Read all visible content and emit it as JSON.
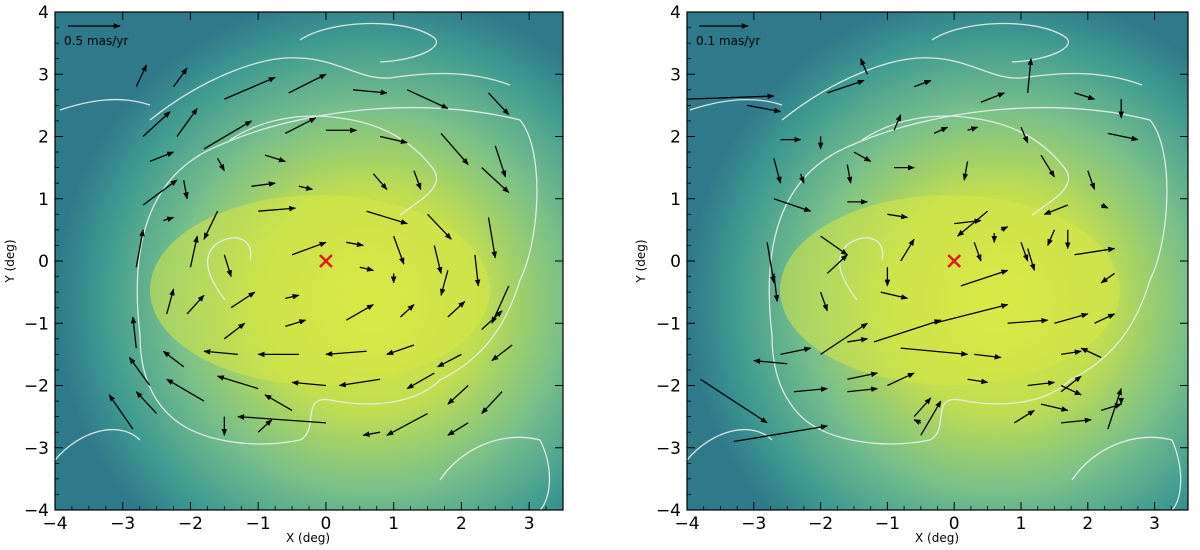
{
  "chart_data": [
    {
      "type": "vector-field",
      "xlabel": "X (deg)",
      "ylabel": "Y (deg)",
      "xlim": [
        -4,
        3.5
      ],
      "ylim": [
        -4,
        4
      ],
      "xticks": [
        -4,
        -3,
        -2,
        -1,
        0,
        1,
        2,
        3
      ],
      "yticks": [
        -4,
        -3,
        -2,
        -1,
        0,
        1,
        2,
        3,
        4
      ],
      "scale_label": "0.5 mas/yr",
      "center_marker": {
        "x": 0,
        "y": 0,
        "symbol": "x",
        "color": "#e41a1c"
      },
      "colors": {
        "background_low": "#2f7f8e",
        "background_mid": "#5fb894",
        "background_high": "#d8e84a",
        "contour": "#e8f2ee",
        "arrow": "#000000"
      },
      "vectors": [
        {
          "x": -2.8,
          "y": 2.8,
          "dx": 0.15,
          "dy": 0.35
        },
        {
          "x": -2.25,
          "y": 2.8,
          "dx": 0.2,
          "dy": 0.3
        },
        {
          "x": -1.5,
          "y": 2.6,
          "dx": 0.75,
          "dy": 0.35
        },
        {
          "x": -0.55,
          "y": 2.7,
          "dx": 0.55,
          "dy": 0.3
        },
        {
          "x": 0.4,
          "y": 2.75,
          "dx": 0.5,
          "dy": -0.05
        },
        {
          "x": 1.2,
          "y": 2.75,
          "dx": 0.6,
          "dy": -0.3
        },
        {
          "x": 2.4,
          "y": 2.7,
          "dx": 0.3,
          "dy": -0.35
        },
        {
          "x": -2.7,
          "y": 2.0,
          "dx": 0.4,
          "dy": 0.4
        },
        {
          "x": -2.2,
          "y": 2.0,
          "dx": 0.3,
          "dy": 0.45
        },
        {
          "x": -1.8,
          "y": 1.8,
          "dx": 0.7,
          "dy": 0.45
        },
        {
          "x": -0.6,
          "y": 2.05,
          "dx": 0.45,
          "dy": 0.25
        },
        {
          "x": 0.0,
          "y": 2.1,
          "dx": 0.45,
          "dy": 0.0
        },
        {
          "x": 0.8,
          "y": 2.0,
          "dx": 0.4,
          "dy": -0.1
        },
        {
          "x": 1.7,
          "y": 2.05,
          "dx": 0.4,
          "dy": -0.5
        },
        {
          "x": 2.5,
          "y": 1.85,
          "dx": 0.15,
          "dy": -0.5
        },
        {
          "x": -2.6,
          "y": 1.6,
          "dx": 0.35,
          "dy": 0.15
        },
        {
          "x": -1.6,
          "y": 1.65,
          "dx": 0.1,
          "dy": -0.2
        },
        {
          "x": -0.9,
          "y": 1.7,
          "dx": 0.3,
          "dy": -0.1
        },
        {
          "x": 0.7,
          "y": 1.4,
          "dx": 0.2,
          "dy": -0.25
        },
        {
          "x": 1.3,
          "y": 1.45,
          "dx": 0.1,
          "dy": -0.3
        },
        {
          "x": -2.7,
          "y": 0.9,
          "dx": 0.5,
          "dy": 0.4
        },
        {
          "x": -2.1,
          "y": 1.3,
          "dx": 0.05,
          "dy": -0.3
        },
        {
          "x": -1.1,
          "y": 1.2,
          "dx": 0.35,
          "dy": 0.05
        },
        {
          "x": -0.4,
          "y": 1.2,
          "dx": 0.2,
          "dy": -0.05
        },
        {
          "x": 2.3,
          "y": 1.5,
          "dx": 0.4,
          "dy": -0.4
        },
        {
          "x": -2.4,
          "y": 0.65,
          "dx": 0.15,
          "dy": 0.05
        },
        {
          "x": -1.6,
          "y": 0.8,
          "dx": -0.2,
          "dy": -0.45
        },
        {
          "x": -1.0,
          "y": 0.8,
          "dx": 0.55,
          "dy": 0.05
        },
        {
          "x": 0.6,
          "y": 0.8,
          "dx": 0.6,
          "dy": -0.2
        },
        {
          "x": 1.5,
          "y": 0.75,
          "dx": 0.35,
          "dy": -0.4
        },
        {
          "x": 2.4,
          "y": 0.7,
          "dx": 0.1,
          "dy": -0.65
        },
        {
          "x": -2.8,
          "y": -0.1,
          "dx": 0.1,
          "dy": 0.6
        },
        {
          "x": -2.0,
          "y": -0.1,
          "dx": 0.1,
          "dy": 0.5
        },
        {
          "x": -1.5,
          "y": 0.1,
          "dx": 0.1,
          "dy": -0.35
        },
        {
          "x": -0.5,
          "y": 0.1,
          "dx": 0.5,
          "dy": 0.2
        },
        {
          "x": 0.3,
          "y": 0.3,
          "dx": 0.25,
          "dy": -0.05
        },
        {
          "x": 1.0,
          "y": 0.4,
          "dx": 0.15,
          "dy": -0.45
        },
        {
          "x": 1.6,
          "y": 0.25,
          "dx": 0.1,
          "dy": -0.45
        },
        {
          "x": 2.2,
          "y": 0.1,
          "dx": 0.05,
          "dy": -0.5
        },
        {
          "x": -2.35,
          "y": -0.85,
          "dx": 0.1,
          "dy": 0.4
        },
        {
          "x": -1.4,
          "y": -0.75,
          "dx": 0.35,
          "dy": 0.25
        },
        {
          "x": -0.6,
          "y": -0.6,
          "dx": 0.2,
          "dy": 0.05
        },
        {
          "x": 0.5,
          "y": -0.1,
          "dx": 0.2,
          "dy": -0.05
        },
        {
          "x": 1.0,
          "y": -0.2,
          "dx": 0.0,
          "dy": -0.15
        },
        {
          "x": 1.8,
          "y": -0.15,
          "dx": -0.1,
          "dy": -0.4
        },
        {
          "x": 2.7,
          "y": -0.4,
          "dx": -0.25,
          "dy": -0.6
        },
        {
          "x": -2.8,
          "y": -1.4,
          "dx": -0.05,
          "dy": 0.5
        },
        {
          "x": -2.05,
          "y": -0.85,
          "dx": 0.25,
          "dy": 0.3
        },
        {
          "x": -1.5,
          "y": -1.25,
          "dx": 0.3,
          "dy": 0.25
        },
        {
          "x": -0.6,
          "y": -1.05,
          "dx": 0.3,
          "dy": 0.1
        },
        {
          "x": 0.3,
          "y": -0.95,
          "dx": 0.4,
          "dy": 0.25
        },
        {
          "x": 1.1,
          "y": -0.9,
          "dx": 0.2,
          "dy": 0.2
        },
        {
          "x": 1.8,
          "y": -0.9,
          "dx": 0.25,
          "dy": 0.25
        },
        {
          "x": 2.3,
          "y": -1.1,
          "dx": 0.3,
          "dy": 0.3
        },
        {
          "x": -2.6,
          "y": -2.0,
          "dx": -0.3,
          "dy": 0.45
        },
        {
          "x": -2.1,
          "y": -1.7,
          "dx": -0.3,
          "dy": 0.25
        },
        {
          "x": -1.3,
          "y": -1.5,
          "dx": -0.5,
          "dy": 0.05
        },
        {
          "x": -0.4,
          "y": -1.5,
          "dx": -0.6,
          "dy": 0.0
        },
        {
          "x": 0.6,
          "y": -1.45,
          "dx": -0.6,
          "dy": -0.05
        },
        {
          "x": 1.3,
          "y": -1.35,
          "dx": -0.4,
          "dy": -0.15
        },
        {
          "x": 2.0,
          "y": -1.5,
          "dx": -0.35,
          "dy": -0.2
        },
        {
          "x": 2.75,
          "y": -1.35,
          "dx": -0.3,
          "dy": -0.25
        },
        {
          "x": -2.85,
          "y": -2.7,
          "dx": -0.35,
          "dy": 0.55
        },
        {
          "x": -2.5,
          "y": -2.45,
          "dx": -0.3,
          "dy": 0.35
        },
        {
          "x": -1.8,
          "y": -2.25,
          "dx": -0.55,
          "dy": 0.35
        },
        {
          "x": -1.0,
          "y": -2.05,
          "dx": -0.6,
          "dy": 0.2
        },
        {
          "x": 0.0,
          "y": -2.0,
          "dx": -0.5,
          "dy": 0.05
        },
        {
          "x": 0.8,
          "y": -1.9,
          "dx": -0.6,
          "dy": -0.1
        },
        {
          "x": 1.6,
          "y": -1.8,
          "dx": -0.4,
          "dy": -0.25
        },
        {
          "x": 2.1,
          "y": -2.0,
          "dx": -0.3,
          "dy": -0.3
        },
        {
          "x": 2.6,
          "y": -2.1,
          "dx": -0.3,
          "dy": -0.35
        },
        {
          "x": -1.5,
          "y": -2.5,
          "dx": 0.0,
          "dy": -0.3
        },
        {
          "x": -1.0,
          "y": -2.75,
          "dx": 0.2,
          "dy": 0.2
        },
        {
          "x": 0.0,
          "y": -2.6,
          "dx": -1.3,
          "dy": 0.1
        },
        {
          "x": -0.5,
          "y": -2.4,
          "dx": -0.4,
          "dy": 0.25
        },
        {
          "x": 0.8,
          "y": -2.75,
          "dx": -0.25,
          "dy": -0.05
        },
        {
          "x": 1.5,
          "y": -2.45,
          "dx": -0.6,
          "dy": -0.35
        },
        {
          "x": 2.1,
          "y": -2.6,
          "dx": -0.3,
          "dy": -0.2
        }
      ]
    },
    {
      "type": "vector-field",
      "xlabel": "X (deg)",
      "ylabel": "Y (deg)",
      "xlim": [
        -4,
        3.5
      ],
      "ylim": [
        -4,
        4
      ],
      "xticks": [
        -4,
        -3,
        -2,
        -1,
        0,
        1,
        2,
        3
      ],
      "yticks": [
        -4,
        -3,
        -2,
        -1,
        0,
        1,
        2,
        3,
        4
      ],
      "scale_label": "0.1 mas/yr",
      "center_marker": {
        "x": 0,
        "y": 0,
        "symbol": "x",
        "color": "#e41a1c"
      },
      "colors": {
        "background_low": "#2f7f8e",
        "background_mid": "#5fb894",
        "background_high": "#d8e84a",
        "contour": "#e8f2ee",
        "arrow": "#000000"
      },
      "vectors": [
        {
          "x": -4.0,
          "y": 2.6,
          "dx": 1.3,
          "dy": 0.05
        },
        {
          "x": -3.1,
          "y": 2.5,
          "dx": 0.5,
          "dy": -0.1
        },
        {
          "x": -1.9,
          "y": 2.7,
          "dx": 0.55,
          "dy": 0.2
        },
        {
          "x": -1.3,
          "y": 3.0,
          "dx": -0.1,
          "dy": 0.25
        },
        {
          "x": -0.6,
          "y": 2.8,
          "dx": 0.25,
          "dy": 0.1
        },
        {
          "x": 0.4,
          "y": 2.55,
          "dx": 0.35,
          "dy": 0.15
        },
        {
          "x": 1.1,
          "y": 2.7,
          "dx": 0.05,
          "dy": 0.55
        },
        {
          "x": 1.8,
          "y": 2.7,
          "dx": 0.3,
          "dy": -0.1
        },
        {
          "x": 2.5,
          "y": 2.6,
          "dx": 0.0,
          "dy": -0.3
        },
        {
          "x": -2.6,
          "y": 1.95,
          "dx": 0.3,
          "dy": 0.0
        },
        {
          "x": -2.0,
          "y": 2.0,
          "dx": 0.0,
          "dy": -0.2
        },
        {
          "x": -1.5,
          "y": 1.75,
          "dx": 0.25,
          "dy": -0.15
        },
        {
          "x": -0.9,
          "y": 2.1,
          "dx": 0.1,
          "dy": 0.25
        },
        {
          "x": -0.3,
          "y": 2.05,
          "dx": 0.2,
          "dy": 0.1
        },
        {
          "x": 0.2,
          "y": 2.1,
          "dx": 0.15,
          "dy": 0.05
        },
        {
          "x": 1.0,
          "y": 2.15,
          "dx": 0.1,
          "dy": -0.25
        },
        {
          "x": 2.3,
          "y": 2.05,
          "dx": 0.45,
          "dy": -0.1
        },
        {
          "x": -2.7,
          "y": 1.65,
          "dx": 0.1,
          "dy": -0.4
        },
        {
          "x": -2.3,
          "y": 1.4,
          "dx": 0.05,
          "dy": -0.15
        },
        {
          "x": -1.6,
          "y": 1.55,
          "dx": 0.05,
          "dy": -0.3
        },
        {
          "x": -0.9,
          "y": 1.5,
          "dx": 0.3,
          "dy": 0.0
        },
        {
          "x": 0.2,
          "y": 1.6,
          "dx": -0.05,
          "dy": -0.3
        },
        {
          "x": 1.3,
          "y": 1.7,
          "dx": 0.2,
          "dy": -0.35
        },
        {
          "x": 2.0,
          "y": 1.45,
          "dx": 0.1,
          "dy": -0.3
        },
        {
          "x": -2.7,
          "y": 1.0,
          "dx": 0.55,
          "dy": -0.2
        },
        {
          "x": -1.6,
          "y": 0.95,
          "dx": 0.3,
          "dy": 0.0
        },
        {
          "x": 0.5,
          "y": 0.8,
          "dx": -0.45,
          "dy": -0.4
        },
        {
          "x": 1.7,
          "y": 0.9,
          "dx": -0.35,
          "dy": -0.15
        },
        {
          "x": 2.2,
          "y": 0.9,
          "dx": 0.1,
          "dy": -0.05
        },
        {
          "x": -1.0,
          "y": 0.75,
          "dx": 0.3,
          "dy": -0.05
        },
        {
          "x": 0.0,
          "y": 0.6,
          "dx": 0.4,
          "dy": 0.05
        },
        {
          "x": 0.7,
          "y": 0.5,
          "dx": 0.1,
          "dy": 0.05
        },
        {
          "x": 1.5,
          "y": 0.5,
          "dx": -0.1,
          "dy": -0.25
        },
        {
          "x": -2.8,
          "y": 0.3,
          "dx": 0.1,
          "dy": -0.65
        },
        {
          "x": -2.0,
          "y": 0.4,
          "dx": 0.4,
          "dy": -0.3
        },
        {
          "x": -0.8,
          "y": 0.0,
          "dx": 0.2,
          "dy": 0.35
        },
        {
          "x": 0.3,
          "y": 0.3,
          "dx": 0.1,
          "dy": -0.3
        },
        {
          "x": 1.0,
          "y": 0.3,
          "dx": 0.1,
          "dy": -0.3
        },
        {
          "x": 1.7,
          "y": 0.5,
          "dx": 0.0,
          "dy": -0.3
        },
        {
          "x": -2.7,
          "y": -0.2,
          "dx": 0.05,
          "dy": -0.45
        },
        {
          "x": -1.9,
          "y": -0.2,
          "dx": 0.3,
          "dy": 0.3
        },
        {
          "x": -1.0,
          "y": -0.1,
          "dx": 0.0,
          "dy": -0.3
        },
        {
          "x": 0.6,
          "y": 0.45,
          "dx": 0.0,
          "dy": -0.15
        },
        {
          "x": 1.1,
          "y": 0.2,
          "dx": 0.1,
          "dy": -0.35
        },
        {
          "x": 1.8,
          "y": 0.1,
          "dx": 0.6,
          "dy": 0.1
        },
        {
          "x": 2.4,
          "y": -0.2,
          "dx": -0.2,
          "dy": -0.15
        },
        {
          "x": -2.0,
          "y": -0.5,
          "dx": 0.1,
          "dy": -0.3
        },
        {
          "x": -1.1,
          "y": -0.5,
          "dx": 0.4,
          "dy": -0.1
        },
        {
          "x": 0.1,
          "y": -0.4,
          "dx": 0.7,
          "dy": 0.25
        },
        {
          "x": -2.6,
          "y": -1.5,
          "dx": 0.45,
          "dy": 0.1
        },
        {
          "x": -2.0,
          "y": -1.5,
          "dx": 0.7,
          "dy": 0.5
        },
        {
          "x": -1.2,
          "y": -1.3,
          "dx": 1.0,
          "dy": 0.35
        },
        {
          "x": -0.3,
          "y": -1.0,
          "dx": 1.1,
          "dy": 0.3
        },
        {
          "x": 0.8,
          "y": -1.0,
          "dx": 0.6,
          "dy": 0.05
        },
        {
          "x": 1.5,
          "y": -1.0,
          "dx": 0.5,
          "dy": 0.15
        },
        {
          "x": 2.1,
          "y": -1.0,
          "dx": 0.3,
          "dy": 0.15
        },
        {
          "x": -2.5,
          "y": -1.65,
          "dx": -0.5,
          "dy": 0.05
        },
        {
          "x": -1.6,
          "y": -1.3,
          "dx": 0.3,
          "dy": 0.05
        },
        {
          "x": -0.8,
          "y": -1.4,
          "dx": 1.0,
          "dy": -0.1
        },
        {
          "x": 0.3,
          "y": -1.5,
          "dx": 0.4,
          "dy": -0.05
        },
        {
          "x": 1.6,
          "y": -1.5,
          "dx": 0.3,
          "dy": 0.05
        },
        {
          "x": 2.2,
          "y": -1.55,
          "dx": -0.3,
          "dy": 0.15
        },
        {
          "x": -2.5,
          "y": -1.65,
          "dx": 0.0,
          "dy": 0.0
        },
        {
          "x": -1.6,
          "y": -1.9,
          "dx": 0.45,
          "dy": 0.1
        },
        {
          "x": -2.4,
          "y": -2.1,
          "dx": 0.5,
          "dy": 0.05
        },
        {
          "x": -1.6,
          "y": -2.1,
          "dx": 0.45,
          "dy": 0.05
        },
        {
          "x": -1.0,
          "y": -2.0,
          "dx": 0.4,
          "dy": 0.2
        },
        {
          "x": 0.2,
          "y": -1.9,
          "dx": 0.3,
          "dy": -0.05
        },
        {
          "x": 1.1,
          "y": -2.0,
          "dx": 0.4,
          "dy": 0.05
        },
        {
          "x": 1.6,
          "y": -2.0,
          "dx": 0.3,
          "dy": -0.15
        },
        {
          "x": 2.3,
          "y": -2.7,
          "dx": 0.2,
          "dy": 0.65
        },
        {
          "x": -3.8,
          "y": -1.9,
          "dx": 1.0,
          "dy": -0.7
        },
        {
          "x": -3.3,
          "y": -2.9,
          "dx": 1.4,
          "dy": 0.25
        },
        {
          "x": -0.6,
          "y": -2.5,
          "dx": 0.25,
          "dy": 0.3
        },
        {
          "x": -0.5,
          "y": -2.6,
          "dx": -0.1,
          "dy": 0.05
        },
        {
          "x": -0.5,
          "y": -2.8,
          "dx": 0.3,
          "dy": 0.55
        },
        {
          "x": 0.9,
          "y": -2.6,
          "dx": 0.3,
          "dy": 0.2
        },
        {
          "x": 1.6,
          "y": -2.6,
          "dx": 0.45,
          "dy": 0.05
        },
        {
          "x": 1.3,
          "y": -2.3,
          "dx": 0.4,
          "dy": -0.1
        },
        {
          "x": 1.6,
          "y": -2.1,
          "dx": 0.3,
          "dy": 0.25
        },
        {
          "x": 2.2,
          "y": -2.4,
          "dx": 0.3,
          "dy": 0.1
        },
        {
          "x": 2.5,
          "y": -2.2,
          "dx": 0.0,
          "dy": -0.1
        }
      ]
    }
  ]
}
